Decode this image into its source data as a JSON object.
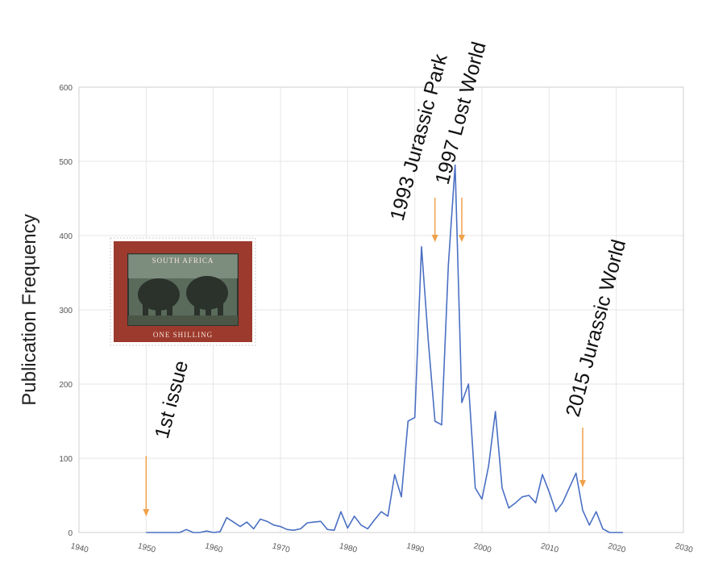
{
  "chart_data": {
    "type": "line",
    "ylabel": "Publication Frequency",
    "xlabel": "",
    "xlim": [
      1940,
      2030
    ],
    "ylim": [
      0,
      600
    ],
    "x_ticks": [
      "1940",
      "1950",
      "1960",
      "1970",
      "1980",
      "1990",
      "2000",
      "2010",
      "2020",
      "2030"
    ],
    "y_ticks": [
      "0",
      "100",
      "200",
      "300",
      "400",
      "500",
      "600"
    ],
    "grid": true,
    "line_color": "#4a6fc3",
    "arrow_color": "#f0a14a",
    "x": [
      1950,
      1951,
      1952,
      1953,
      1954,
      1955,
      1956,
      1957,
      1958,
      1959,
      1960,
      1961,
      1962,
      1963,
      1964,
      1965,
      1966,
      1967,
      1968,
      1969,
      1970,
      1971,
      1972,
      1973,
      1974,
      1975,
      1976,
      1977,
      1978,
      1979,
      1980,
      1981,
      1982,
      1983,
      1984,
      1985,
      1986,
      1987,
      1988,
      1989,
      1990,
      1991,
      1992,
      1993,
      1994,
      1995,
      1996,
      1997,
      1998,
      1999,
      2000,
      2001,
      2002,
      2003,
      2004,
      2005,
      2006,
      2007,
      2008,
      2009,
      2010,
      2011,
      2012,
      2013,
      2014,
      2015,
      2016,
      2017,
      2018,
      2019,
      2020,
      2021
    ],
    "values": [
      0,
      0,
      0,
      0,
      0,
      0,
      4,
      0,
      0,
      2,
      0,
      1,
      20,
      14,
      8,
      14,
      5,
      18,
      15,
      10,
      8,
      4,
      3,
      5,
      13,
      14,
      15,
      4,
      3,
      28,
      6,
      22,
      10,
      5,
      17,
      28,
      22,
      78,
      48,
      150,
      155,
      385,
      260,
      150,
      145,
      360,
      495,
      175,
      200,
      60,
      45,
      90,
      163,
      60,
      33,
      40,
      48,
      50,
      40,
      78,
      55,
      28,
      40,
      60,
      80,
      30,
      10,
      28,
      5,
      0,
      0,
      0
    ],
    "annotations": [
      {
        "year": 1950,
        "text": "1st issue"
      },
      {
        "year": 1993,
        "text": "1993 Jurassic Park"
      },
      {
        "year": 1997,
        "text": "1997 Lost World"
      },
      {
        "year": 2015,
        "text": "2015 Jurassic World"
      }
    ],
    "stamp": {
      "top_text": "SOUTH AFRICA",
      "bottom_text": "ONE SHILLING"
    }
  }
}
